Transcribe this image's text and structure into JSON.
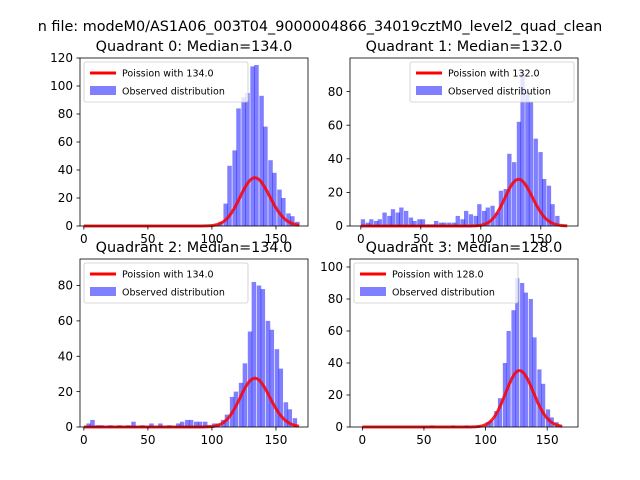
{
  "figure": {
    "title": "n file: modeM0/AS1A06_003T04_9000004866_34019cztM0_level2_quad_clean"
  },
  "chart_data": [
    {
      "type": "bar",
      "title": "Quadrant 0: Median=134.0",
      "xlim": [
        -3,
        175
      ],
      "ylim": [
        0,
        120
      ],
      "xticks": [
        0,
        50,
        100,
        150
      ],
      "yticks": [
        0,
        20,
        40,
        60,
        80,
        100,
        120
      ],
      "bin_width": 3.5,
      "bins": [
        [
          102,
          1
        ],
        [
          105,
          3
        ],
        [
          109,
          16
        ],
        [
          112,
          43
        ],
        [
          116,
          54
        ],
        [
          119,
          84
        ],
        [
          123,
          92
        ],
        [
          126,
          95
        ],
        [
          130,
          114
        ],
        [
          133,
          115
        ],
        [
          137,
          93
        ],
        [
          140,
          71
        ],
        [
          144,
          47
        ],
        [
          147,
          38
        ],
        [
          151,
          26
        ],
        [
          154,
          20
        ],
        [
          158,
          9
        ],
        [
          161,
          7
        ],
        [
          165,
          3
        ]
      ],
      "poisson": {
        "label": "Poission with 134.0",
        "mean": 134.0,
        "x_range": [
          0,
          168
        ],
        "scale": 1.0
      },
      "observed_label": "Observed distribution",
      "colors": {
        "line": "#ff0000",
        "bars": "#0000ff"
      }
    },
    {
      "type": "bar",
      "title": "Quadrant 1: Median=132.0",
      "xlim": [
        -9,
        181
      ],
      "ylim": [
        0,
        100
      ],
      "xticks": [
        0,
        50,
        100,
        150
      ],
      "yticks": [
        0,
        20,
        40,
        60,
        80
      ],
      "bin_width": 3.6,
      "bins": [
        [
          0,
          4
        ],
        [
          4,
          2
        ],
        [
          7,
          4
        ],
        [
          11,
          3
        ],
        [
          14,
          4
        ],
        [
          18,
          8
        ],
        [
          22,
          6
        ],
        [
          25,
          10
        ],
        [
          29,
          8
        ],
        [
          32,
          11
        ],
        [
          36,
          9
        ],
        [
          40,
          5
        ],
        [
          43,
          3
        ],
        [
          47,
          4
        ],
        [
          50,
          4
        ],
        [
          54,
          1
        ],
        [
          58,
          1
        ],
        [
          61,
          3
        ],
        [
          65,
          2
        ],
        [
          68,
          2
        ],
        [
          72,
          2
        ],
        [
          76,
          2
        ],
        [
          79,
          6
        ],
        [
          83,
          4
        ],
        [
          86,
          9
        ],
        [
          90,
          7
        ],
        [
          94,
          6
        ],
        [
          97,
          13
        ],
        [
          101,
          9
        ],
        [
          104,
          11
        ],
        [
          108,
          12
        ],
        [
          112,
          8
        ],
        [
          115,
          21
        ],
        [
          119,
          22
        ],
        [
          122,
          43
        ],
        [
          126,
          38
        ],
        [
          130,
          62
        ],
        [
          133,
          91
        ],
        [
          137,
          80
        ],
        [
          140,
          74
        ],
        [
          144,
          52
        ],
        [
          148,
          44
        ],
        [
          151,
          28
        ],
        [
          155,
          24
        ],
        [
          158,
          13
        ],
        [
          162,
          6
        ]
      ],
      "poisson": {
        "label": "Poission with 132.0",
        "mean": 132.0,
        "x_range": [
          0,
          172
        ],
        "scale": 0.8
      },
      "observed_label": "Observed distribution",
      "colors": {
        "line": "#ff0000",
        "bars": "#0000ff"
      }
    },
    {
      "type": "bar",
      "title": "Quadrant 2: Median=134.0",
      "xlim": [
        -3,
        175
      ],
      "ylim": [
        0,
        95
      ],
      "xticks": [
        0,
        50,
        100,
        150
      ],
      "yticks": [
        0,
        20,
        40,
        60,
        80
      ],
      "bin_width": 3.5,
      "bins": [
        [
          2,
          2
        ],
        [
          5,
          4
        ],
        [
          9,
          1
        ],
        [
          12,
          1
        ],
        [
          19,
          1
        ],
        [
          26,
          1
        ],
        [
          33,
          1
        ],
        [
          37,
          3
        ],
        [
          44,
          1
        ],
        [
          51,
          2
        ],
        [
          58,
          2
        ],
        [
          65,
          1
        ],
        [
          72,
          2
        ],
        [
          75,
          3
        ],
        [
          79,
          4
        ],
        [
          82,
          4
        ],
        [
          86,
          3
        ],
        [
          89,
          3
        ],
        [
          93,
          3
        ],
        [
          96,
          1
        ],
        [
          100,
          2
        ],
        [
          103,
          2
        ],
        [
          107,
          4
        ],
        [
          110,
          7
        ],
        [
          114,
          17
        ],
        [
          117,
          20
        ],
        [
          121,
          25
        ],
        [
          124,
          36
        ],
        [
          128,
          54
        ],
        [
          131,
          82
        ],
        [
          135,
          80
        ],
        [
          138,
          78
        ],
        [
          142,
          60
        ],
        [
          145,
          55
        ],
        [
          149,
          44
        ],
        [
          152,
          33
        ],
        [
          156,
          14
        ],
        [
          159,
          10
        ],
        [
          163,
          5
        ]
      ],
      "poisson": {
        "label": "Poission with 134.0",
        "mean": 134.0,
        "x_range": [
          0,
          168
        ],
        "scale": 0.8
      },
      "observed_label": "Observed distribution",
      "colors": {
        "line": "#ff0000",
        "bars": "#0000ff"
      }
    },
    {
      "type": "bar",
      "title": "Quadrant 3: Median=128.0",
      "xlim": [
        -10,
        175
      ],
      "ylim": [
        0,
        105
      ],
      "xticks": [
        0,
        50,
        100,
        150
      ],
      "yticks": [
        0,
        20,
        40,
        60,
        80,
        100
      ],
      "bin_width": 3.4,
      "bins": [
        [
          55,
          1
        ],
        [
          72,
          1
        ],
        [
          83,
          1
        ],
        [
          93,
          1
        ],
        [
          100,
          3
        ],
        [
          103,
          4
        ],
        [
          107,
          10
        ],
        [
          110,
          18
        ],
        [
          114,
          40
        ],
        [
          117,
          60
        ],
        [
          121,
          73
        ],
        [
          124,
          93
        ],
        [
          128,
          90
        ],
        [
          131,
          84
        ],
        [
          135,
          80
        ],
        [
          138,
          56
        ],
        [
          142,
          36
        ],
        [
          145,
          27
        ],
        [
          149,
          11
        ],
        [
          152,
          6
        ],
        [
          156,
          3
        ],
        [
          159,
          1
        ]
      ],
      "poisson": {
        "label": "Poission with 128.0",
        "mean": 128.0,
        "x_range": [
          0,
          162
        ],
        "scale": 1.0
      },
      "observed_label": "Observed distribution",
      "colors": {
        "line": "#ff0000",
        "bars": "#0000ff"
      }
    }
  ]
}
